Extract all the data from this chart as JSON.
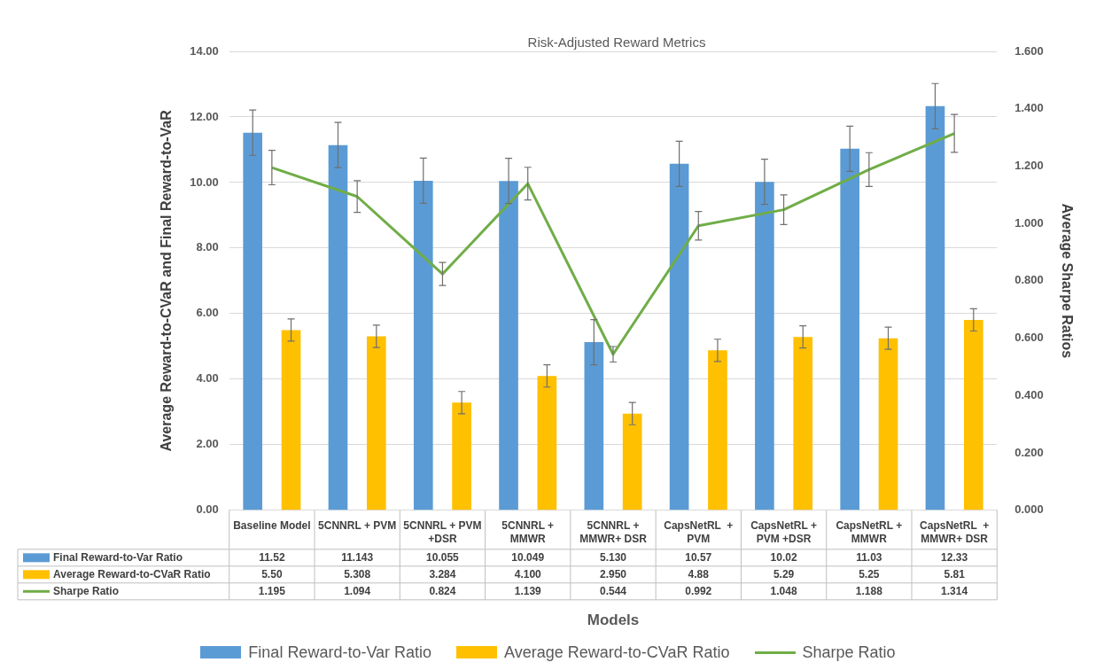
{
  "chart_data": {
    "type": "bar",
    "title": "Risk-Adjusted Reward Metrics",
    "xlabel": "Models",
    "ylabel": "Average Reward-to-CVaR and Final Reward-to-VaR",
    "y2label": "Average Sharpe Ratios",
    "categories": [
      "Baseline Model",
      "5CNNRL + PVM",
      "5CNNRL + PVM +DSR",
      "5CNNRL + MMWR",
      "5CNNRL + MMWR+ DSR",
      "CapsNetRL  + PVM",
      "CapsNetRL + PVM +DSR",
      "CapsNetRL + MMWR",
      "CapsNetRL  + MMWR+ DSR"
    ],
    "series": [
      {
        "name": "Final Reward-to-Var Ratio",
        "color": "#5b9bd5",
        "values": [
          11.52,
          11.143,
          10.055,
          10.049,
          5.13,
          10.57,
          10.02,
          11.03,
          12.33
        ],
        "value_labels": [
          "11.52",
          "11.143",
          "10.055",
          "10.049",
          "5.130",
          "10.57",
          "10.02",
          "11.03",
          "12.33"
        ],
        "errors": [
          0.69,
          0.69,
          0.69,
          0.69,
          0.69,
          0.69,
          0.69,
          0.69,
          0.69
        ]
      },
      {
        "name": "Average Reward-to-CVaR Ratio",
        "color": "#ffc000",
        "values": [
          5.5,
          5.308,
          3.284,
          4.1,
          2.95,
          4.88,
          5.29,
          5.25,
          5.81
        ],
        "value_labels": [
          "5.50",
          "5.308",
          "3.284",
          "4.100",
          "2.950",
          "4.88",
          "5.29",
          "5.25",
          "5.81"
        ],
        "errors": [
          0.34,
          0.34,
          0.34,
          0.34,
          0.34,
          0.34,
          0.34,
          0.34,
          0.34
        ]
      },
      {
        "name": "Sharpe Ratio",
        "type": "line",
        "axis": "y2",
        "color": "#70ad47",
        "values": [
          1.195,
          1.094,
          0.824,
          1.139,
          0.544,
          0.992,
          1.048,
          1.188,
          1.314
        ],
        "value_labels": [
          "1.195",
          "1.094",
          "0.824",
          "1.139",
          "0.544",
          "0.992",
          "1.048",
          "1.188",
          "1.314"
        ],
        "errors": [
          0.06,
          0.055,
          0.04,
          0.057,
          0.027,
          0.05,
          0.052,
          0.059,
          0.066
        ]
      }
    ],
    "ylim": [
      0,
      14
    ],
    "yticks": [
      {
        "value": 0,
        "label": "0.00"
      },
      {
        "value": 2,
        "label": "2.00"
      },
      {
        "value": 4,
        "label": "4.00"
      },
      {
        "value": 6,
        "label": "6.00"
      },
      {
        "value": 8,
        "label": "8.00"
      },
      {
        "value": 10,
        "label": "10.00"
      },
      {
        "value": 12,
        "label": "12.00"
      },
      {
        "value": 14,
        "label": "14.00"
      }
    ],
    "y2lim": [
      0,
      1.6
    ],
    "y2ticks": [
      {
        "value": 0,
        "label": "0.000"
      },
      {
        "value": 0.2,
        "label": "0.200"
      },
      {
        "value": 0.4,
        "label": "0.400"
      },
      {
        "value": 0.6,
        "label": "0.600"
      },
      {
        "value": 0.8,
        "label": "0.800"
      },
      {
        "value": 1,
        "label": "1.000"
      },
      {
        "value": 1.2,
        "label": "1.200"
      },
      {
        "value": 1.4,
        "label": "1.400"
      },
      {
        "value": 1.6,
        "label": "1.600"
      }
    ],
    "grid": "y",
    "legend": "bottom",
    "marker": "none",
    "line_style": "solid"
  }
}
